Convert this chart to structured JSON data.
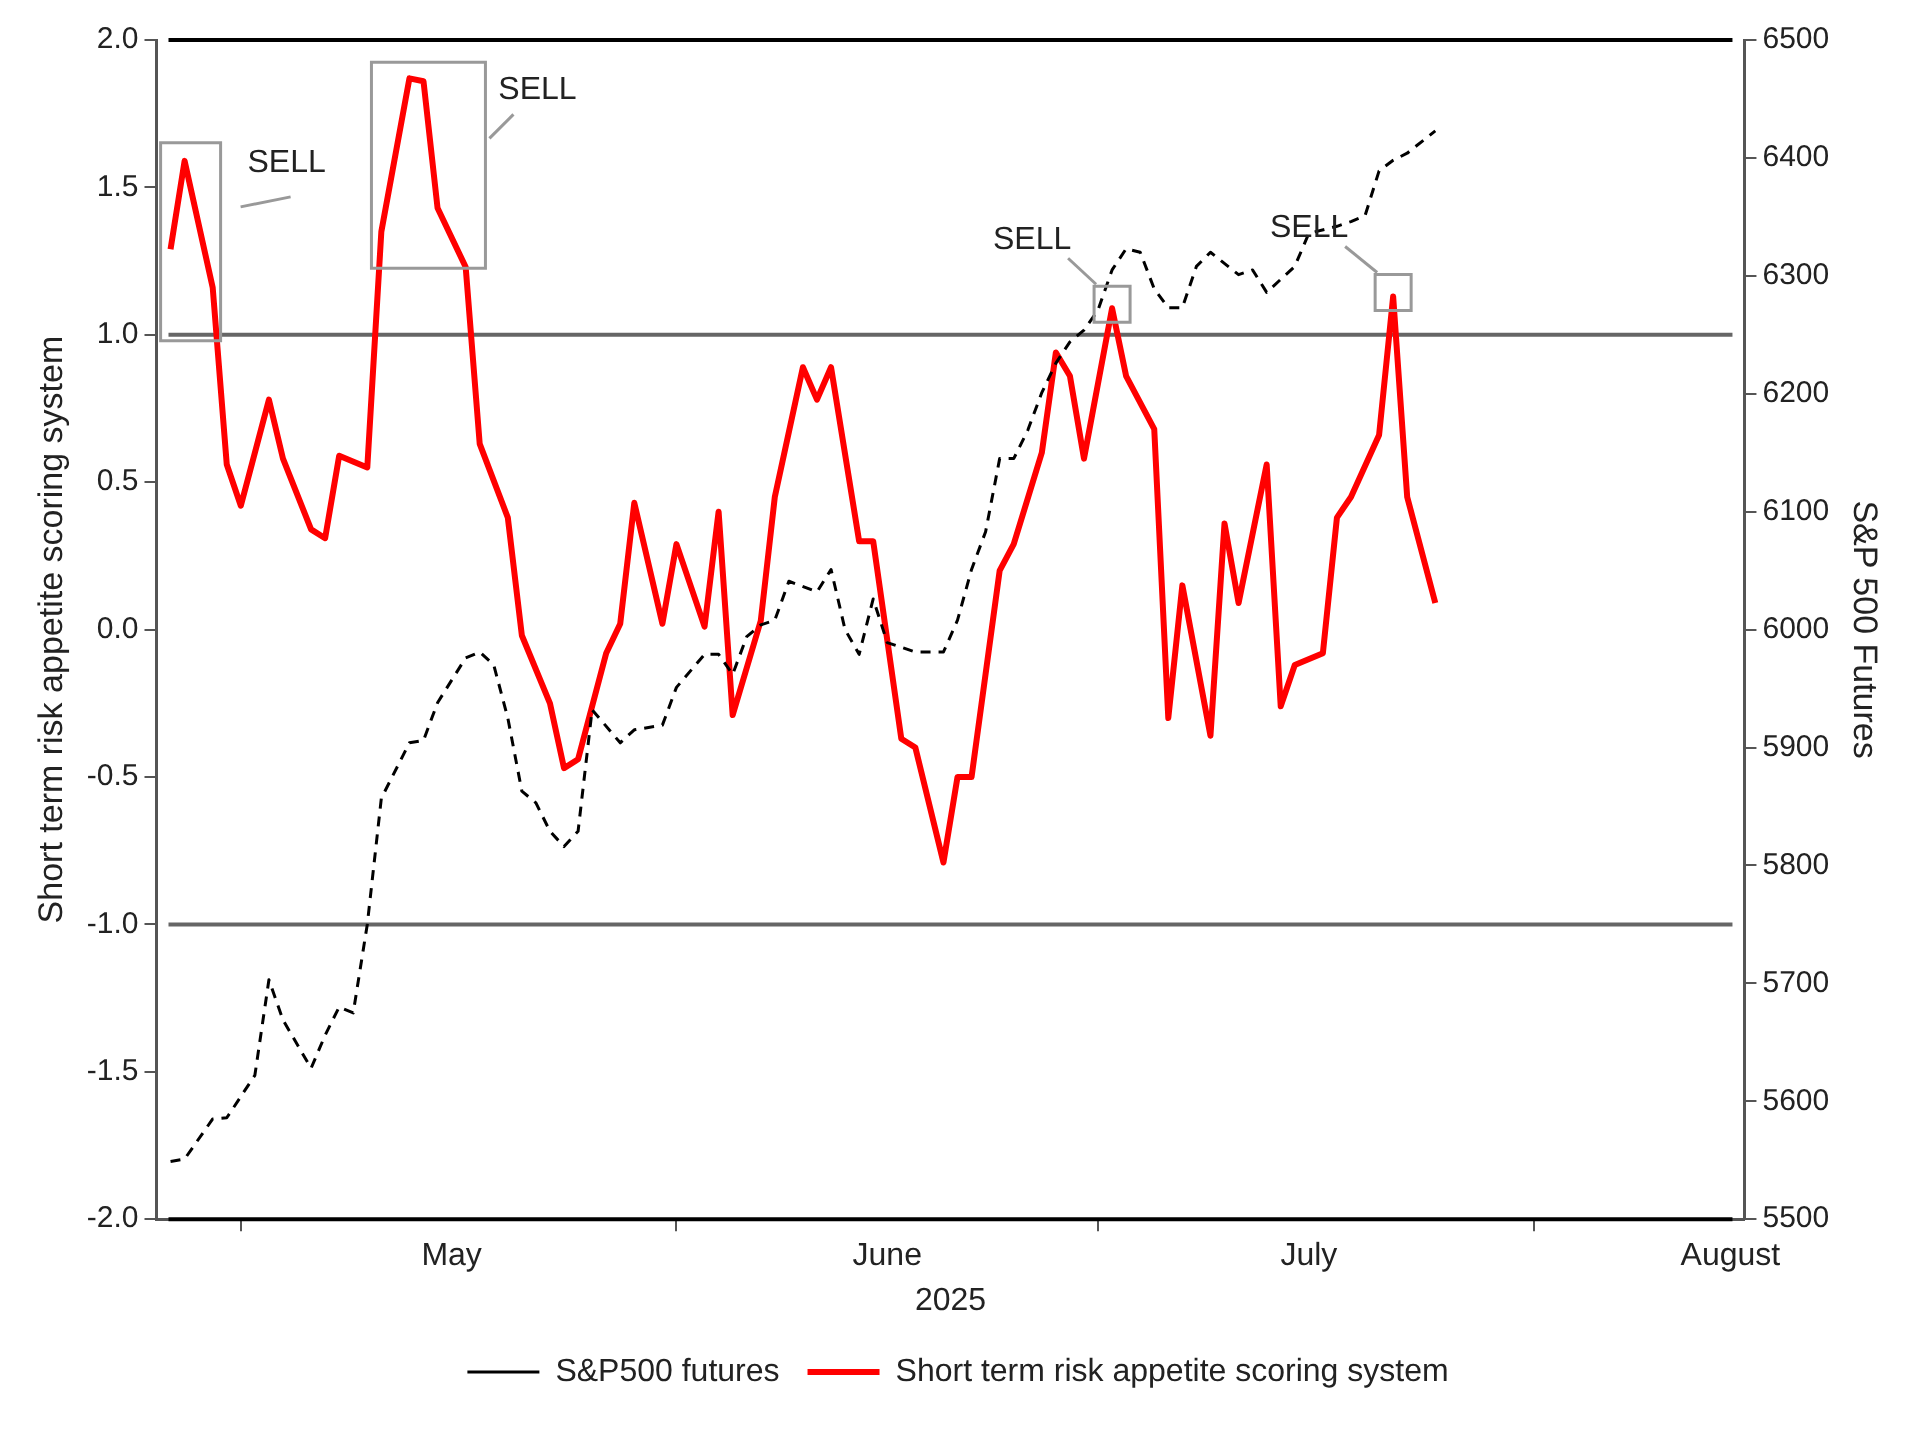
{
  "chart_data": {
    "type": "line",
    "xlabel": "2025",
    "ylabel": "Short term risk appetite scoring system",
    "y2label": "S&P 500 Futures",
    "x": [
      "2025-04-26",
      "2025-04-27",
      "2025-04-29",
      "2025-04-30",
      "2025-05-01",
      "2025-05-03",
      "2025-05-04",
      "2025-05-06",
      "2025-05-07",
      "2025-05-08",
      "2025-05-10",
      "2025-05-11",
      "2025-05-13",
      "2025-05-14",
      "2025-05-15",
      "2025-05-17",
      "2025-05-18",
      "2025-05-20",
      "2025-05-21",
      "2025-05-23",
      "2025-05-24",
      "2025-05-25",
      "2025-05-27",
      "2025-05-28",
      "2025-05-29",
      "2025-05-31",
      "2025-06-01",
      "2025-06-03",
      "2025-06-04",
      "2025-06-05",
      "2025-06-07",
      "2025-06-08",
      "2025-06-10",
      "2025-06-11",
      "2025-06-12",
      "2025-06-14",
      "2025-06-15",
      "2025-06-17",
      "2025-06-18",
      "2025-06-20",
      "2025-06-21",
      "2025-06-22",
      "2025-06-24",
      "2025-06-25",
      "2025-06-27",
      "2025-06-28",
      "2025-06-29",
      "2025-06-30",
      "2025-07-02",
      "2025-07-03",
      "2025-07-05",
      "2025-07-06",
      "2025-07-07",
      "2025-07-09",
      "2025-07-10",
      "2025-07-11",
      "2025-07-13",
      "2025-07-14",
      "2025-07-15",
      "2025-07-17",
      "2025-07-18",
      "2025-07-19",
      "2025-07-21",
      "2025-07-22",
      "2025-07-23",
      "2025-07-25"
    ],
    "series": [
      {
        "name": "S&P500 futures",
        "color": "#000000",
        "axis": "y2",
        "line_style": "dashed",
        "x": [
          "2025-04-26",
          "2025-04-27",
          "2025-04-29",
          "2025-04-30",
          "2025-05-02",
          "2025-05-03",
          "2025-05-04",
          "2025-05-06",
          "2025-05-07",
          "2025-05-08",
          "2025-05-09",
          "2025-05-10",
          "2025-05-11",
          "2025-05-13",
          "2025-05-14",
          "2025-05-15",
          "2025-05-17",
          "2025-05-18",
          "2025-05-19",
          "2025-05-20",
          "2025-05-21",
          "2025-05-22",
          "2025-05-23",
          "2025-05-24",
          "2025-05-25",
          "2025-05-26",
          "2025-05-28",
          "2025-05-29",
          "2025-05-31",
          "2025-06-01",
          "2025-06-03",
          "2025-06-04",
          "2025-06-05",
          "2025-06-06",
          "2025-06-07",
          "2025-06-08",
          "2025-06-09",
          "2025-06-11",
          "2025-06-12",
          "2025-06-13",
          "2025-06-14",
          "2025-06-15",
          "2025-06-16",
          "2025-06-18",
          "2025-06-20",
          "2025-06-21",
          "2025-06-22",
          "2025-06-23",
          "2025-06-24",
          "2025-06-25",
          "2025-06-26",
          "2025-06-27",
          "2025-06-28",
          "2025-06-29",
          "2025-06-30",
          "2025-07-01",
          "2025-07-02",
          "2025-07-03",
          "2025-07-04",
          "2025-07-05",
          "2025-07-06",
          "2025-07-07",
          "2025-07-08",
          "2025-07-09",
          "2025-07-11",
          "2025-07-12",
          "2025-07-13",
          "2025-07-15",
          "2025-07-16",
          "2025-07-18",
          "2025-07-19",
          "2025-07-20",
          "2025-07-21",
          "2025-07-22",
          "2025-07-23",
          "2025-07-25"
        ],
        "values": [
          5549,
          5551,
          5585,
          5586,
          5622,
          5703,
          5669,
          5628,
          5656,
          5680,
          5675,
          5750,
          5857,
          5904,
          5906,
          5938,
          5976,
          5981,
          5970,
          5925,
          5863,
          5853,
          5829,
          5816,
          5829,
          5932,
          5904,
          5915,
          5919,
          5951,
          5979,
          5979,
          5962,
          5994,
          6004,
          6008,
          6041,
          6032,
          6051,
          6000,
          5979,
          6026,
          5989,
          5981,
          5981,
          6008,
          6051,
          6083,
          6145,
          6145,
          6169,
          6201,
          6226,
          6244,
          6254,
          6271,
          6305,
          6323,
          6320,
          6289,
          6273,
          6273,
          6308,
          6320,
          6301,
          6305,
          6286,
          6308,
          6336,
          6342,
          6346,
          6351,
          6389,
          6398,
          6404,
          6423
        ]
      },
      {
        "name": "Short term risk appetite scoring system",
        "color": "#ff0000",
        "line_style": "solid",
        "values": [
          1.29,
          1.59,
          1.16,
          0.56,
          0.42,
          0.78,
          0.58,
          0.34,
          0.31,
          0.59,
          0.55,
          1.35,
          1.87,
          1.86,
          1.43,
          1.23,
          0.63,
          0.38,
          -0.02,
          -0.25,
          -0.47,
          -0.44,
          -0.08,
          0.02,
          0.43,
          0.02,
          0.29,
          0.01,
          0.4,
          -0.29,
          0.03,
          0.45,
          0.89,
          0.78,
          0.89,
          0.3,
          0.3,
          -0.37,
          -0.4,
          -0.79,
          -0.5,
          -0.5,
          0.2,
          0.29,
          0.6,
          0.94,
          0.86,
          0.58,
          1.09,
          0.86,
          0.68,
          -0.3,
          0.15,
          -0.36,
          0.36,
          0.09,
          0.56,
          -0.26,
          -0.12,
          -0.08,
          0.38,
          0.45,
          0.66,
          1.13,
          0.45,
          0.09
        ]
      }
    ],
    "xlim": [
      "2025-04-25",
      "2025-08-16"
    ],
    "xticks": [
      {
        "value": "2025-05-01",
        "label": null
      },
      {
        "value": "2025-05-16",
        "label": "May"
      },
      {
        "value": "2025-06-01",
        "label": null
      },
      {
        "value": "2025-06-16",
        "label": "June"
      },
      {
        "value": "2025-07-01",
        "label": null
      },
      {
        "value": "2025-07-16",
        "label": "July"
      },
      {
        "value": "2025-08-01",
        "label": null
      },
      {
        "value": "2025-08-15",
        "label": "August"
      }
    ],
    "ylim": [
      -2,
      2
    ],
    "yticks": [
      {
        "value": -2,
        "label": "-2.0"
      },
      {
        "value": -1.5,
        "label": "-1.5"
      },
      {
        "value": -1,
        "label": "-1.0"
      },
      {
        "value": -0.5,
        "label": "-0.5"
      },
      {
        "value": 0,
        "label": "0.0"
      },
      {
        "value": 0.5,
        "label": "0.5"
      },
      {
        "value": 1,
        "label": "1.0"
      },
      {
        "value": 1.5,
        "label": "1.5"
      },
      {
        "value": 2,
        "label": "2.0"
      }
    ],
    "y2lim": [
      5500,
      6500
    ],
    "y2ticks": [
      5500,
      5600,
      5700,
      5800,
      5900,
      6000,
      6100,
      6200,
      6300,
      6400,
      6500
    ],
    "ref_lines": [
      {
        "axis": "y",
        "value": 2,
        "color": "#000000"
      },
      {
        "axis": "y",
        "value": 1,
        "color": "#666666"
      },
      {
        "axis": "y",
        "value": -1,
        "color": "#666666"
      },
      {
        "axis": "y",
        "value": -2,
        "color": "#000000"
      }
    ],
    "annotations": [
      {
        "text": "SELL",
        "x": "2025-04-27",
        "y": 1.59
      },
      {
        "text": "SELL",
        "x": "2025-05-13",
        "y": 1.87
      },
      {
        "text": "SELL",
        "x": "2025-07-02",
        "y": 1.09
      },
      {
        "text": "SELL",
        "x": "2025-07-22",
        "y": 1.13
      }
    ],
    "legend": "bottom",
    "grid": false,
    "marker": "none"
  }
}
